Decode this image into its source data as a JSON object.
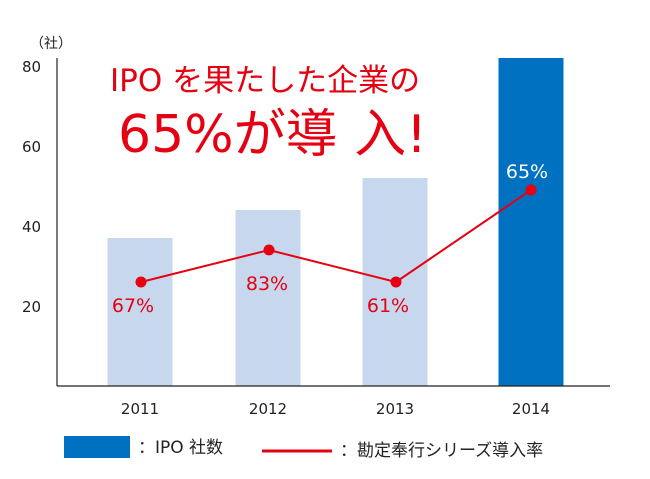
{
  "chart_data": {
    "type": "bar",
    "title": "IPO を果たした企業の",
    "headline": "65%が導 入!",
    "ylabel": "（社）",
    "ylim": [
      0,
      80
    ],
    "yticks": [
      "20",
      "40",
      "60",
      "80"
    ],
    "categories": [
      "2011",
      "2012",
      "2013",
      "2014"
    ],
    "series": [
      {
        "name": "：IPO 社数",
        "type": "bar",
        "values": [
          37,
          44,
          52,
          82
        ],
        "colors": [
          "#c7d8ee",
          "#c7d8ee",
          "#c7d8ee",
          "#0071c1"
        ]
      },
      {
        "name": "：勘定奉行シリーズ導入率",
        "type": "line",
        "color": "#e50012",
        "labels": [
          "67%",
          "83%",
          "61%",
          "65%"
        ],
        "plot_positions": [
          26,
          34,
          26,
          49
        ]
      }
    ],
    "legend": "bottom"
  }
}
